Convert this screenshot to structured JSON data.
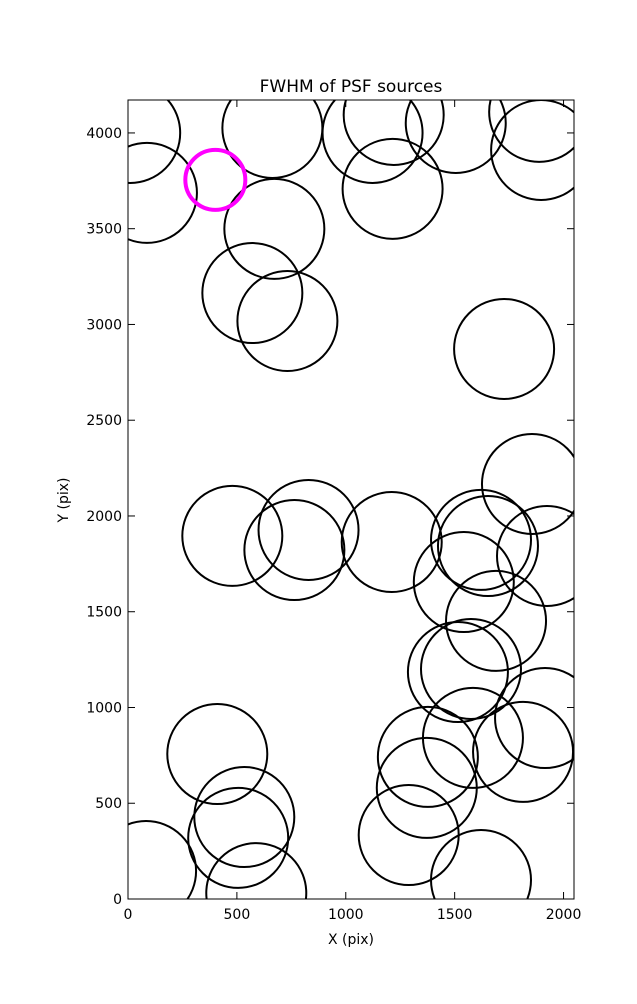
{
  "chart_data": {
    "type": "scatter",
    "title": "FWHM of PSF sources",
    "x_label": "X (pix)",
    "y_label": "Y (pix)",
    "xlim": [
      0,
      2048
    ],
    "ylim": [
      0,
      4172
    ],
    "xticks": [
      0,
      500,
      1000,
      1500,
      2000
    ],
    "yticks": [
      0,
      500,
      1000,
      1500,
      2000,
      2500,
      3000,
      3500,
      4000
    ],
    "series": [
      {
        "color": "#000000",
        "x": [
          10,
          87,
          663,
          1123,
          1220,
          1505,
          1888,
          1897,
          1215,
          672,
          571,
          732,
          1727,
          1855,
          479,
          829,
          764,
          1211,
          1621,
          1653,
          1924,
          1542,
          1690,
          1515,
          1575,
          1915,
          410,
          1584,
          1814,
          1377,
          1372,
          534,
          506,
          1289,
          83,
          589,
          1621
        ],
        "values": [
          4000,
          3687,
          4026,
          4000,
          4094,
          4052,
          4110,
          3911,
          3708,
          3499,
          3164,
          3018,
          2872,
          2167,
          1896,
          1927,
          1822,
          1864,
          1875,
          1843,
          1791,
          1655,
          1452,
          1185,
          1201,
          945,
          757,
          841,
          768,
          742,
          580,
          428,
          319,
          334,
          146,
          31,
          99
        ]
      },
      {
        "color": "#ff00ff",
        "x": [
          401
        ],
        "values": [
          3755
        ]
      }
    ]
  }
}
